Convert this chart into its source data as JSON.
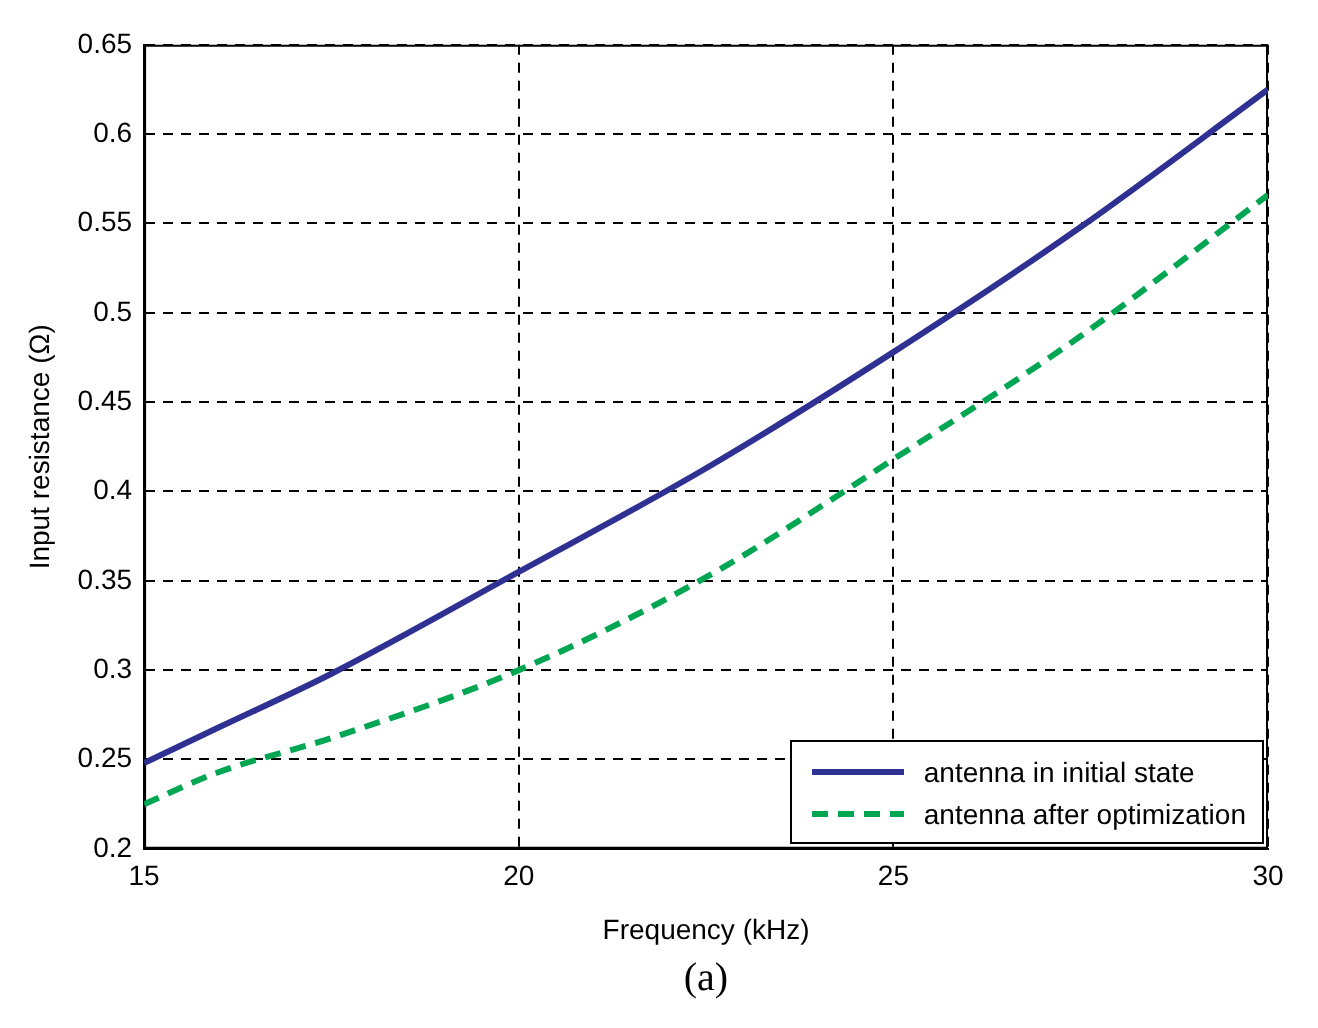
{
  "chart_data": {
    "type": "line",
    "xlabel": "Frequency (kHz)",
    "ylabel": "Input resistance (Ω)",
    "annotations": [
      "(a)"
    ],
    "xlim": [
      15,
      30
    ],
    "xticks": [
      15,
      20,
      25,
      30
    ],
    "ylim": [
      0.2,
      0.65
    ],
    "yticks": [
      0.2,
      0.25,
      0.3,
      0.35,
      0.4,
      0.45,
      0.5,
      0.55,
      0.6,
      0.65
    ],
    "grid": true,
    "legend": "bottom right",
    "marker": "none",
    "series": [
      {
        "name": "antenna in initial state",
        "color": "#2e3192",
        "line_style": "solid",
        "x": [
          15,
          16,
          17.5,
          20,
          22.5,
          25,
          27.5,
          30
        ],
        "values": [
          0.248,
          0.268,
          0.298,
          0.355,
          0.413,
          0.478,
          0.548,
          0.625
        ]
      },
      {
        "name": "antenna after optimization",
        "color": "#00a651",
        "line_style": "dashed",
        "x": [
          15,
          16,
          17.5,
          20,
          22.5,
          25,
          27.5,
          30
        ],
        "values": [
          0.225,
          0.243,
          0.262,
          0.3,
          0.352,
          0.418,
          0.487,
          0.566
        ]
      }
    ]
  }
}
